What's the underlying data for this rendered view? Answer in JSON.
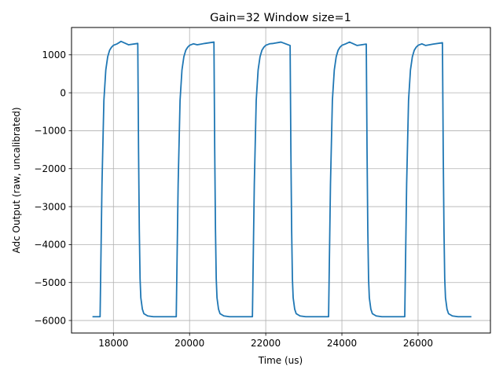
{
  "chart_data": {
    "type": "line",
    "title": "Gain=32 Window size=1",
    "xlabel": "Time (us)",
    "ylabel": "Adc Output (raw, uncalibrated)",
    "xlim": [
      16900,
      27900
    ],
    "ylim": [
      -6330,
      1720
    ],
    "xticks": [
      18000,
      20000,
      22000,
      24000,
      26000
    ],
    "xtick_labels": [
      "18000",
      "20000",
      "22000",
      "24000",
      "26000"
    ],
    "yticks": [
      1000,
      0,
      -1000,
      -2000,
      -3000,
      -4000,
      -5000,
      -6000
    ],
    "ytick_labels": [
      "1000",
      "0",
      "−1000",
      "−2000",
      "−3000",
      "−4000",
      "−5000",
      "−6000"
    ],
    "grid": true,
    "line_color": "#1f77b4",
    "low_level": -5900,
    "high_level": 1300,
    "series": [
      {
        "x": [
          17450,
          17650,
          17700,
          17750,
          17800,
          17850,
          17900,
          17950,
          18000,
          18100,
          18200,
          18400,
          18640,
          18660,
          18680,
          18700,
          18720,
          18760,
          18800,
          18900,
          19050,
          19200,
          19400,
          19650,
          19700,
          19750,
          19800,
          19850,
          19900,
          19950,
          20000,
          20100,
          20200,
          20400,
          20640,
          20660,
          20680,
          20700,
          20720,
          20760,
          20800,
          20900,
          21050,
          21200,
          21400,
          21650,
          21700,
          21750,
          21800,
          21850,
          21900,
          21950,
          22000,
          22100,
          22200,
          22400,
          22640,
          22660,
          22680,
          22700,
          22720,
          22760,
          22800,
          22900,
          23050,
          23200,
          23400,
          23650,
          23700,
          23750,
          23800,
          23850,
          23900,
          23950,
          24000,
          24100,
          24200,
          24400,
          24640,
          24660,
          24680,
          24700,
          24720,
          24760,
          24800,
          24900,
          25050,
          25200,
          25400,
          25650,
          25700,
          25750,
          25800,
          25850,
          25900,
          25950,
          26000,
          26100,
          26200,
          26400,
          26640,
          26660,
          26680,
          26700,
          26720,
          26760,
          26800,
          26900,
          27050,
          27200,
          27400
        ],
        "y": [
          -5900,
          -5900,
          -2400,
          -200,
          600,
          950,
          1120,
          1200,
          1250,
          1290,
          1300,
          1300,
          1300,
          -1500,
          -3600,
          -4900,
          -5400,
          -5700,
          -5820,
          -5880,
          -5900,
          -5900,
          -5900,
          -5900,
          -2400,
          -200,
          600,
          950,
          1120,
          1200,
          1250,
          1290,
          1300,
          1300,
          1300,
          -1500,
          -3600,
          -4900,
          -5400,
          -5700,
          -5820,
          -5880,
          -5900,
          -5900,
          -5900,
          -5900,
          -2400,
          -200,
          600,
          950,
          1120,
          1200,
          1250,
          1290,
          1300,
          1300,
          1300,
          -1500,
          -3600,
          -4900,
          -5400,
          -5700,
          -5820,
          -5880,
          -5900,
          -5900,
          -5900,
          -5900,
          -2400,
          -200,
          600,
          950,
          1120,
          1200,
          1250,
          1290,
          1300,
          1300,
          1300,
          -1500,
          -3600,
          -4900,
          -5400,
          -5700,
          -5820,
          -5880,
          -5900,
          -5900,
          -5900,
          -5900,
          -2400,
          -200,
          600,
          950,
          1120,
          1200,
          1250,
          1290,
          1300,
          1300,
          1300,
          -1500,
          -3600,
          -4900,
          -5400,
          -5700,
          -5820,
          -5880,
          -5900,
          -5900,
          -5900
        ]
      }
    ]
  }
}
